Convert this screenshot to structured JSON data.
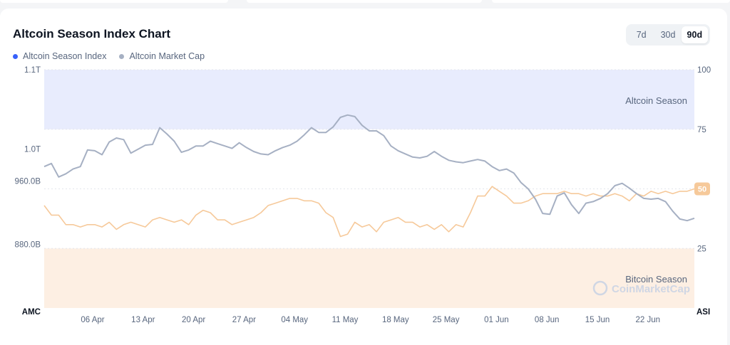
{
  "chart_data": {
    "type": "line",
    "title": "Altcoin Season Index Chart",
    "range_tabs": [
      {
        "label": "7d",
        "active": false
      },
      {
        "label": "30d",
        "active": false
      },
      {
        "label": "90d",
        "active": true
      }
    ],
    "x_ticks": [
      "06 Apr",
      "13 Apr",
      "20 Apr",
      "27 Apr",
      "04 May",
      "11 May",
      "18 May",
      "25 May",
      "01 Jun",
      "08 Jun",
      "15 Jun",
      "22 Jun"
    ],
    "x_start_label": "AMC",
    "x_end_label": "ASI",
    "left_axis": {
      "ticks": [
        "1.1T",
        "1.0T",
        "960.0B",
        "880.0B"
      ],
      "values": [
        1.1,
        1.0,
        0.96,
        0.88
      ],
      "range": [
        0.8,
        1.1
      ],
      "unit_note": "trillions"
    },
    "right_axis": {
      "ticks": [
        "100",
        "75",
        "25"
      ],
      "values": [
        100,
        75,
        25
      ],
      "range": [
        0,
        100
      ]
    },
    "zones": [
      {
        "label": "Altcoin Season",
        "from": 75,
        "to": 100,
        "color": "#e8ecfd"
      },
      {
        "label": "Bitcoin Season",
        "from": 0,
        "to": 25,
        "color": "#fdefe3"
      }
    ],
    "watermark": "CoinMarketCap",
    "grid": true,
    "legend_position": "top-left",
    "series": [
      {
        "name": "Altcoin Season Index",
        "axis": "right",
        "color": "#f6c99a",
        "last_value_label": "50",
        "values": [
          43,
          39,
          39,
          35,
          35,
          34,
          35,
          35,
          34,
          36,
          33,
          35,
          36,
          35,
          34,
          37,
          38,
          37,
          36,
          37,
          35,
          39,
          41,
          40,
          37,
          37,
          35,
          36,
          37,
          38,
          40,
          43,
          44,
          45,
          46,
          46,
          45,
          45,
          44,
          40,
          38,
          30,
          31,
          36,
          34,
          35,
          32,
          36,
          37,
          38,
          36,
          36,
          34,
          35,
          33,
          35,
          32,
          35,
          34,
          40,
          47,
          47,
          51,
          49,
          47,
          44,
          44,
          45,
          47,
          48,
          48,
          48,
          49,
          48,
          48,
          47,
          48,
          47,
          47,
          48,
          47,
          45,
          48,
          47,
          49,
          48,
          49,
          48,
          49,
          49,
          50
        ]
      },
      {
        "name": "Altcoin Market Cap",
        "axis": "left",
        "color": "#a6b0c3",
        "values": [
          0.978,
          0.982,
          0.965,
          0.969,
          0.975,
          0.978,
          0.999,
          0.998,
          0.993,
          1.009,
          1.014,
          1.012,
          0.995,
          1.0,
          1.005,
          1.006,
          1.027,
          1.019,
          1.01,
          0.996,
          0.999,
          1.004,
          1.004,
          1.01,
          1.007,
          1.004,
          1.001,
          1.008,
          1.002,
          0.997,
          0.994,
          0.993,
          0.998,
          1.002,
          1.005,
          1.01,
          1.018,
          1.027,
          1.021,
          1.021,
          1.028,
          1.04,
          1.043,
          1.041,
          1.03,
          1.023,
          1.023,
          1.017,
          1.004,
          0.998,
          0.994,
          0.99,
          0.989,
          0.991,
          0.997,
          0.991,
          0.986,
          0.984,
          0.983,
          0.985,
          0.987,
          0.985,
          0.978,
          0.973,
          0.975,
          0.97,
          0.958,
          0.95,
          0.937,
          0.919,
          0.918,
          0.941,
          0.945,
          0.93,
          0.919,
          0.932,
          0.934,
          0.938,
          0.944,
          0.954,
          0.957,
          0.951,
          0.944,
          0.938,
          0.937,
          0.938,
          0.934,
          0.922,
          0.912,
          0.91,
          0.913
        ]
      }
    ]
  }
}
